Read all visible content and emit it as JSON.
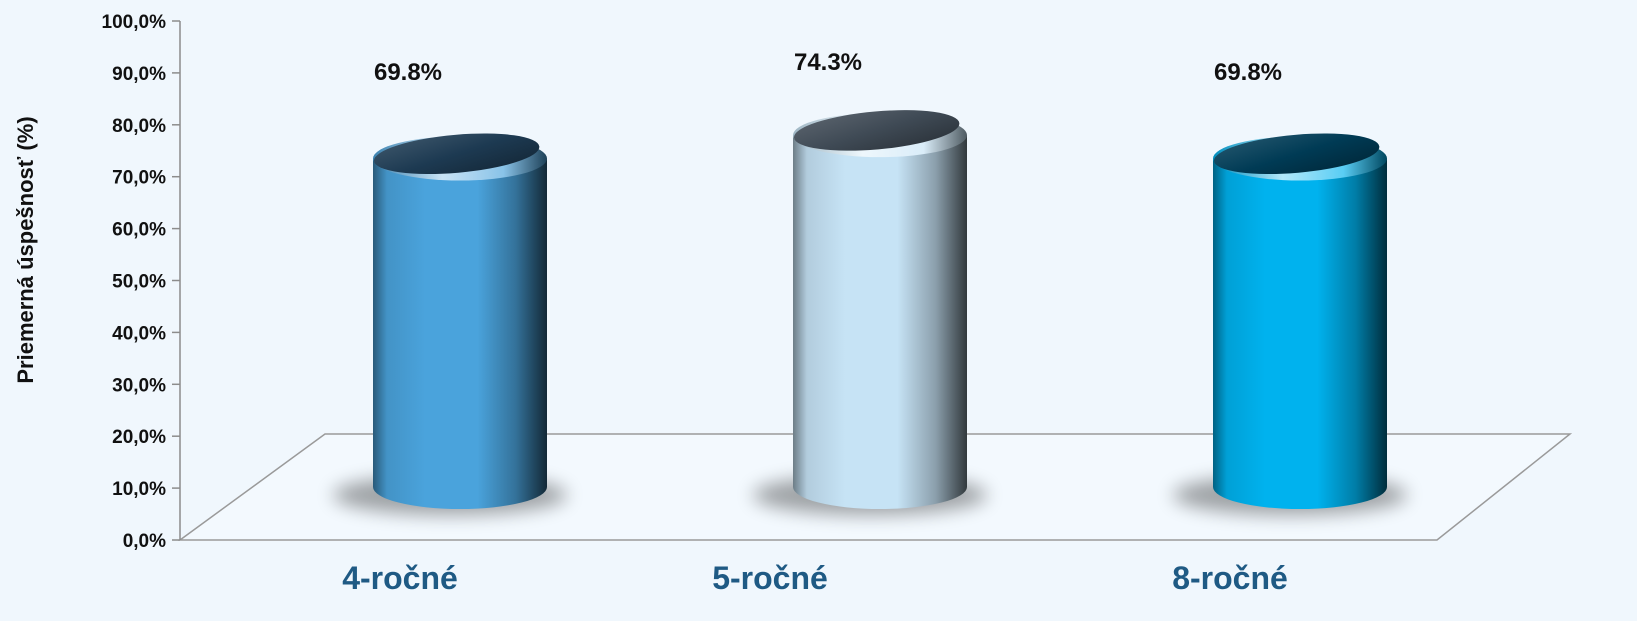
{
  "chart_data": {
    "type": "bar",
    "style": "3d-cylinder",
    "categories": [
      "4-ročné",
      "5-ročné",
      "8-ročné"
    ],
    "values": [
      69.8,
      74.3,
      69.8
    ],
    "data_labels": [
      "69.8%",
      "74.3%",
      "69.8%"
    ],
    "title": "",
    "xlabel": "",
    "ylabel": "Priemerná úspešnosť (%)",
    "ylim": [
      0,
      100
    ],
    "yticks": [
      0,
      10,
      20,
      30,
      40,
      50,
      60,
      70,
      80,
      90,
      100
    ],
    "ytick_labels": [
      "0,0%",
      "10,0%",
      "20,0%",
      "30,0%",
      "40,0%",
      "50,0%",
      "60,0%",
      "70,0%",
      "80,0%",
      "90,0%",
      "100,0%"
    ],
    "grid": false,
    "legend": "none",
    "colors": {
      "bars": [
        "#4aa3dc",
        "#c6e3f5",
        "#00b2ee"
      ],
      "bar_tops": [
        "#1d3a52",
        "#3f4a55",
        "#003b55"
      ],
      "category_labels": "#1f5a84",
      "background": "#f0f7fd",
      "axis": "#8c8c8c"
    }
  }
}
